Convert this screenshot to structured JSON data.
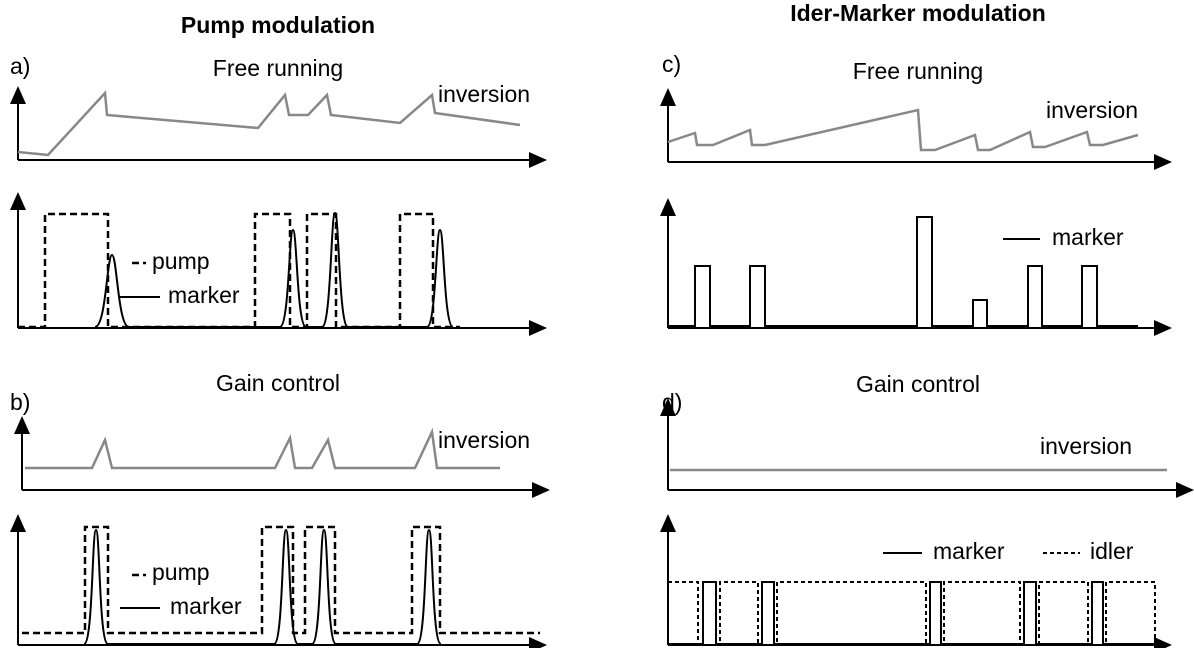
{
  "columns": [
    {
      "title": "Pump modulation",
      "panels": [
        {
          "label": "a)",
          "title": "Free running",
          "inversion_label": "inversion",
          "legend": [
            "pump",
            "marker"
          ]
        },
        {
          "label": "b)",
          "title": "Gain control",
          "inversion_label": "inversion",
          "legend": [
            "pump",
            "marker"
          ]
        }
      ]
    },
    {
      "title": "Ider-Marker modulation",
      "panels": [
        {
          "label": "c)",
          "title": "Free running",
          "inversion_label": "inversion",
          "legend": [
            "marker"
          ]
        },
        {
          "label": "d)",
          "title": "Gain control",
          "inversion_label": "inversion",
          "legend": [
            "marker",
            "idler"
          ]
        }
      ]
    }
  ]
}
